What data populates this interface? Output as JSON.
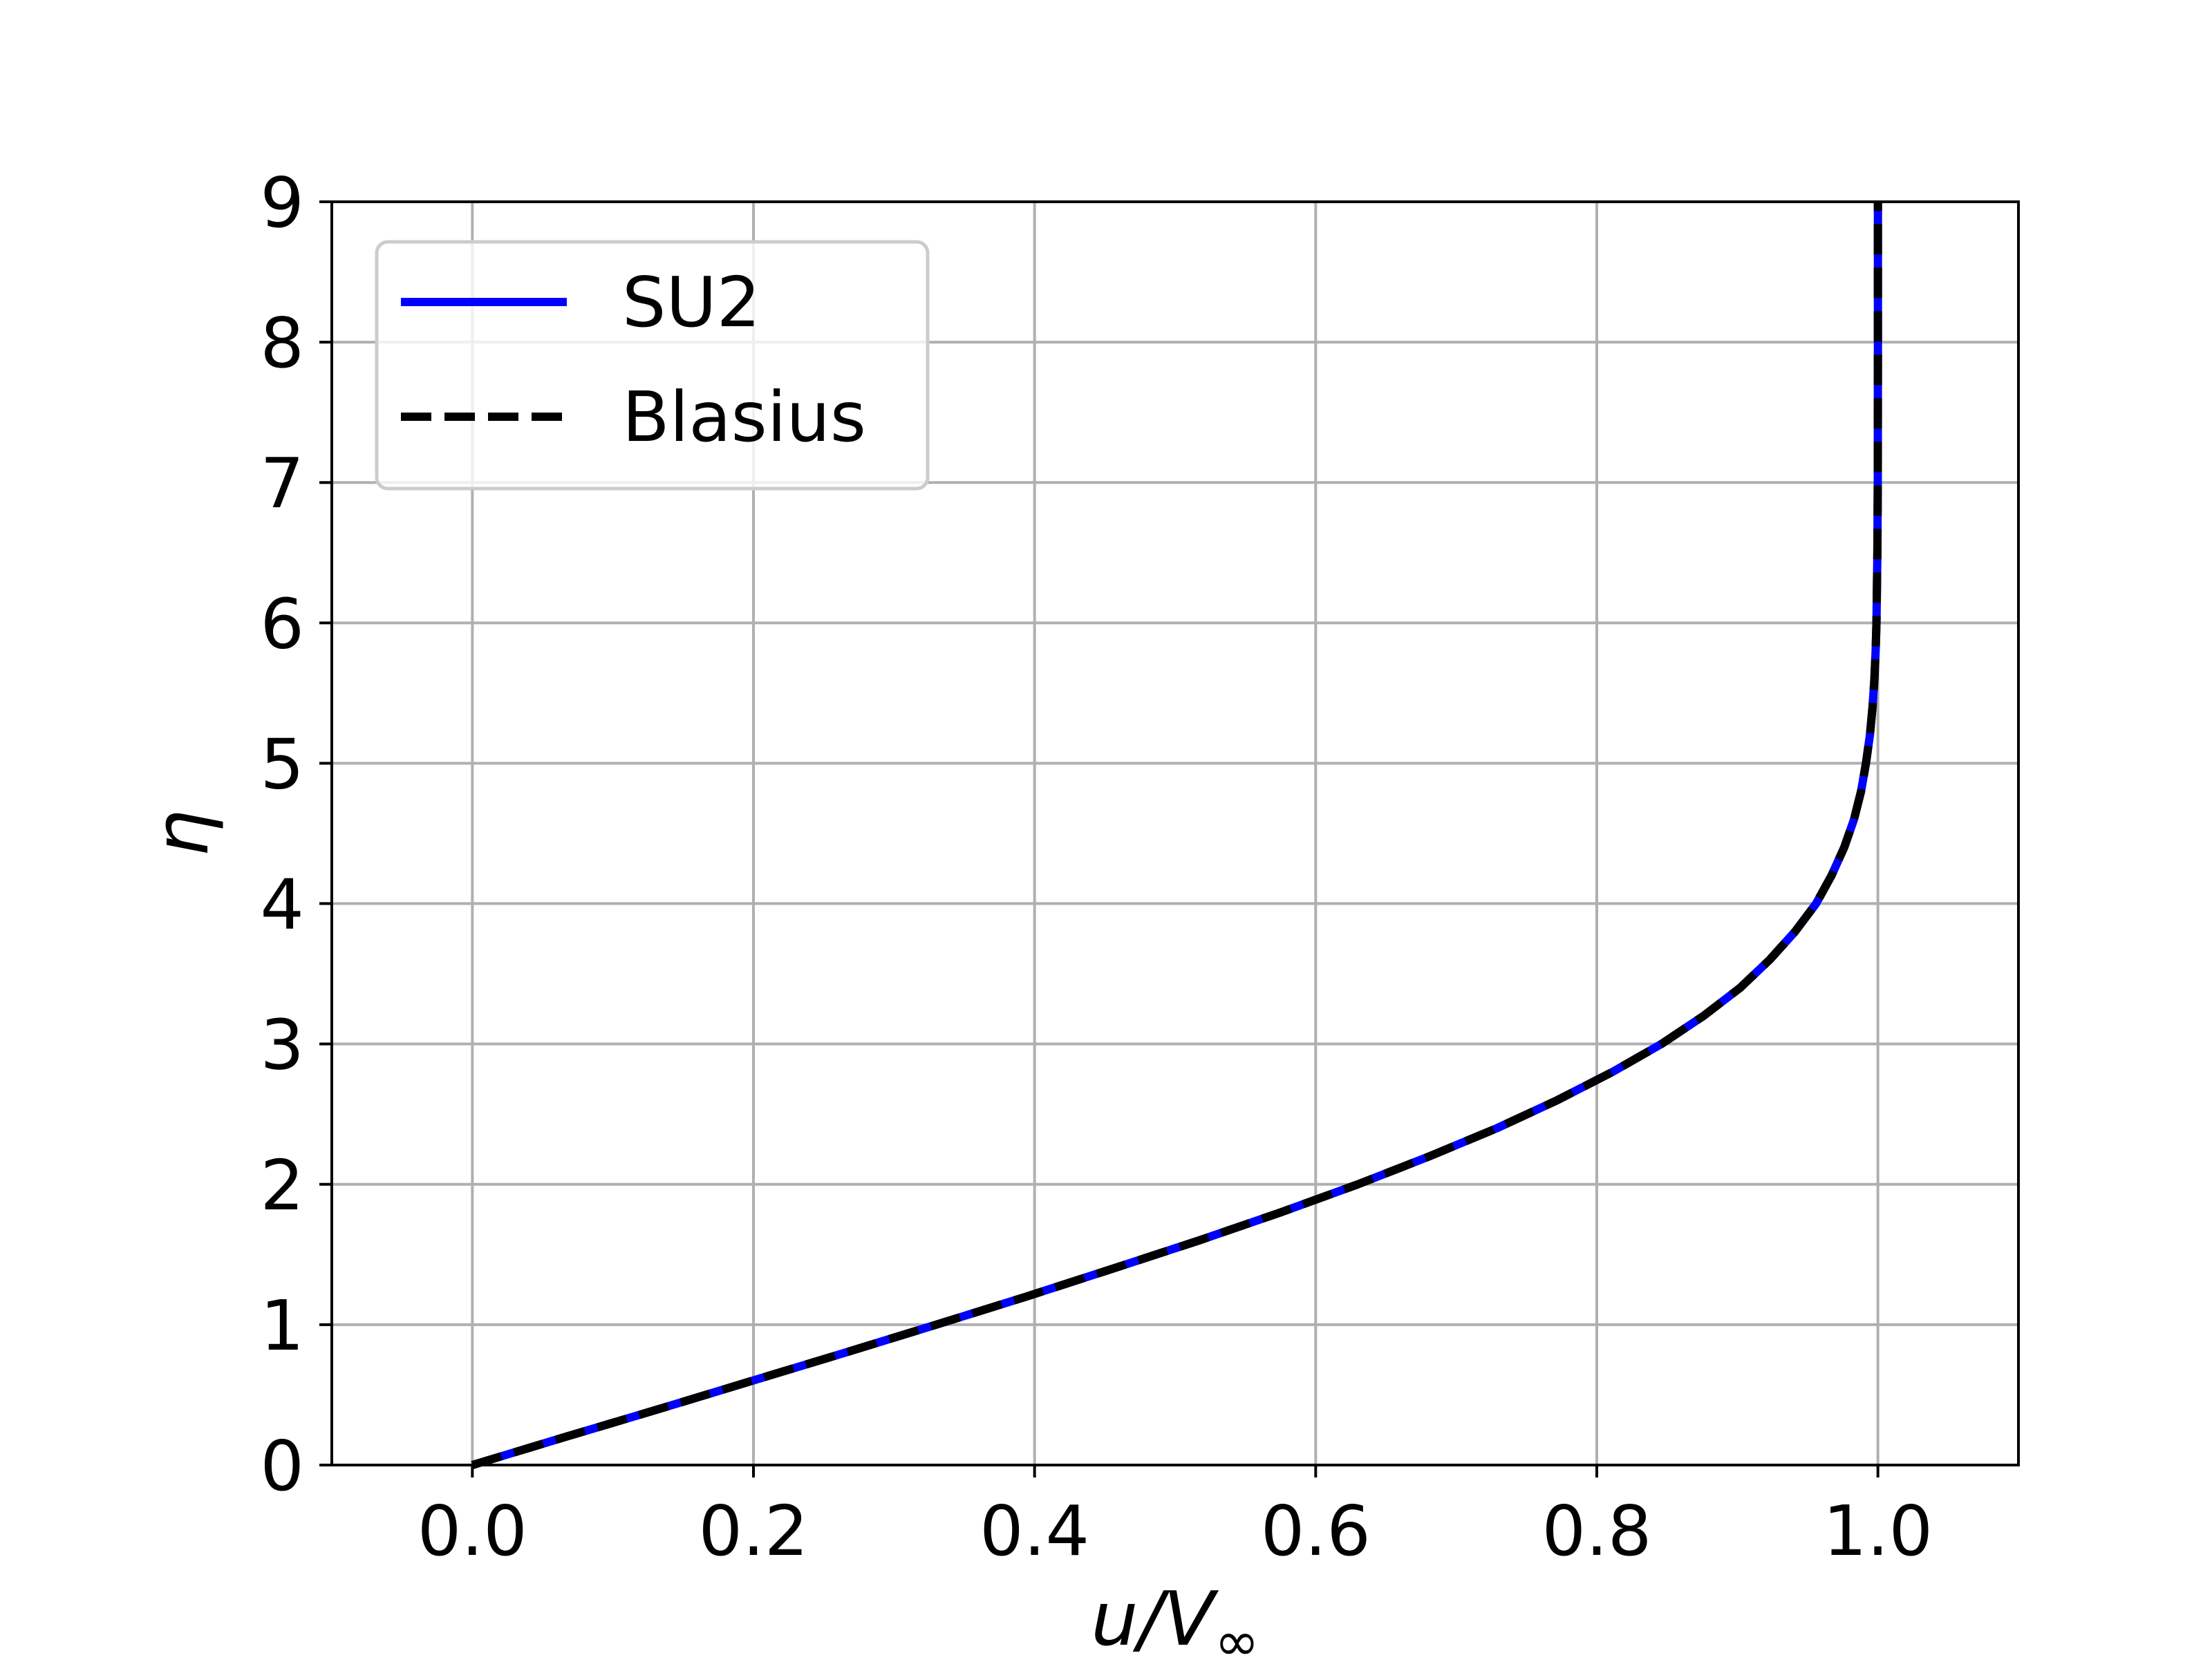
{
  "chart_data": {
    "type": "line",
    "title": "",
    "xlabel": "u/V∞",
    "xlabel_parts": {
      "main": "u/V",
      "subscript": "∞"
    },
    "ylabel": "η",
    "xlim": [
      -0.1,
      1.1
    ],
    "ylim": [
      0,
      9
    ],
    "xticks": [
      0.0,
      0.2,
      0.4,
      0.6,
      0.8,
      1.0
    ],
    "xtick_labels": [
      "0.0",
      "0.2",
      "0.4",
      "0.6",
      "0.8",
      "1.0"
    ],
    "yticks": [
      0,
      1,
      2,
      3,
      4,
      5,
      6,
      7,
      8,
      9
    ],
    "ytick_labels": [
      "0",
      "1",
      "2",
      "3",
      "4",
      "5",
      "6",
      "7",
      "8",
      "9"
    ],
    "grid": true,
    "legend_position": "top-left",
    "series": [
      {
        "name": "SU2",
        "color": "#0000ff",
        "style": "solid",
        "x": [
          0.0,
          0.066,
          0.133,
          0.199,
          0.265,
          0.33,
          0.394,
          0.456,
          0.517,
          0.575,
          0.63,
          0.681,
          0.729,
          0.772,
          0.811,
          0.846,
          0.876,
          0.902,
          0.923,
          0.941,
          0.956,
          0.967,
          0.976,
          0.983,
          0.988,
          0.9915,
          0.9943,
          0.9962,
          0.9975,
          0.9984,
          0.999,
          0.9996,
          0.9999,
          1.0,
          1.0
        ],
        "y": [
          0.0,
          0.2,
          0.4,
          0.6,
          0.8,
          1.0,
          1.2,
          1.4,
          1.6,
          1.8,
          2.0,
          2.2,
          2.4,
          2.6,
          2.8,
          3.0,
          3.2,
          3.4,
          3.6,
          3.8,
          4.0,
          4.2,
          4.4,
          4.6,
          4.8,
          5.0,
          5.2,
          5.4,
          5.6,
          5.8,
          6.0,
          6.5,
          7.0,
          8.0,
          9.0
        ]
      },
      {
        "name": "Blasius",
        "color": "#000000",
        "style": "dashed",
        "x": [
          0.0,
          0.066,
          0.133,
          0.199,
          0.265,
          0.33,
          0.394,
          0.456,
          0.517,
          0.575,
          0.63,
          0.681,
          0.729,
          0.772,
          0.811,
          0.846,
          0.876,
          0.902,
          0.923,
          0.941,
          0.956,
          0.967,
          0.976,
          0.983,
          0.988,
          0.9915,
          0.9943,
          0.9962,
          0.9975,
          0.9984,
          0.999,
          0.9996,
          0.9999,
          1.0,
          1.0
        ],
        "y": [
          0.0,
          0.2,
          0.4,
          0.6,
          0.8,
          1.0,
          1.2,
          1.4,
          1.6,
          1.8,
          2.0,
          2.2,
          2.4,
          2.6,
          2.8,
          3.0,
          3.2,
          3.4,
          3.6,
          3.8,
          4.0,
          4.2,
          4.4,
          4.6,
          4.8,
          5.0,
          5.2,
          5.4,
          5.6,
          5.8,
          6.0,
          6.5,
          7.0,
          8.0,
          9.0
        ]
      }
    ]
  }
}
